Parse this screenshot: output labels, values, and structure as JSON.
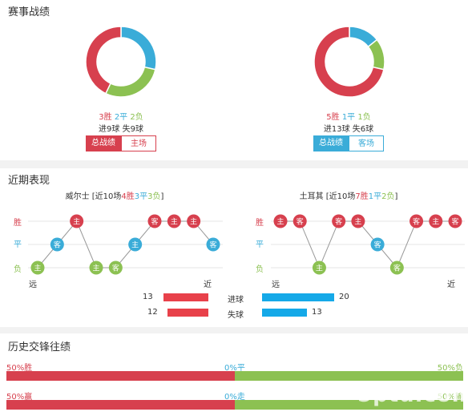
{
  "record": {
    "title": "赛事战绩",
    "left": {
      "donut": [
        {
          "name": "win",
          "value": 3,
          "color": "#d7404e"
        },
        {
          "name": "draw",
          "value": 2,
          "color": "#3aacd8"
        },
        {
          "name": "loss",
          "value": 2,
          "color": "#8cc152"
        }
      ],
      "win": "3胜",
      "draw": "2平",
      "loss": "2负",
      "goals": "进9球 失9球",
      "tab_total": "总战绩",
      "tab_venue": "主场"
    },
    "right": {
      "donut": [
        {
          "name": "win",
          "value": 5,
          "color": "#d7404e"
        },
        {
          "name": "draw",
          "value": 1,
          "color": "#3aacd8"
        },
        {
          "name": "loss",
          "value": 1,
          "color": "#8cc152"
        }
      ],
      "win": "5胜",
      "draw": "1平",
      "loss": "1负",
      "goals": "进13球 失6球",
      "tab_total": "总战绩",
      "tab_venue": "客场"
    }
  },
  "recent": {
    "title": "近期表现",
    "left": {
      "team": "威尔士",
      "summary_pre": " [近10场",
      "w": "4胜",
      "d": "3平",
      "l": "3负",
      "summary_post": "]",
      "results": [
        {
          "r": "L",
          "v": "主"
        },
        {
          "r": "D",
          "v": "客"
        },
        {
          "r": "W",
          "v": "主"
        },
        {
          "r": "L",
          "v": "主"
        },
        {
          "r": "L",
          "v": "客"
        },
        {
          "r": "D",
          "v": "主"
        },
        {
          "r": "W",
          "v": "客"
        },
        {
          "r": "W",
          "v": "主"
        },
        {
          "r": "W",
          "v": "主"
        },
        {
          "r": "D",
          "v": "客"
        }
      ]
    },
    "right": {
      "team": "土耳其",
      "summary_pre": " [近10场",
      "w": "7胜",
      "d": "1平",
      "l": "2负",
      "summary_post": "]",
      "results": [
        {
          "r": "W",
          "v": "主"
        },
        {
          "r": "W",
          "v": "客"
        },
        {
          "r": "L",
          "v": "主"
        },
        {
          "r": "W",
          "v": "客"
        },
        {
          "r": "W",
          "v": "主"
        },
        {
          "r": "D",
          "v": "客"
        },
        {
          "r": "L",
          "v": "客"
        },
        {
          "r": "W",
          "v": "客"
        },
        {
          "r": "W",
          "v": "主"
        },
        {
          "r": "W",
          "v": "客"
        }
      ]
    },
    "y_labels": {
      "win": "胜",
      "draw": "平",
      "loss": "负"
    },
    "far": "远",
    "near": "近",
    "goals": {
      "label": "进球",
      "left": 13,
      "right": 20,
      "max": 20
    },
    "conceded": {
      "label": "失球",
      "left": 12,
      "right": 13,
      "max": 20
    }
  },
  "history": {
    "title": "历史交锋往绩",
    "rows": [
      {
        "left_label": "50%胜",
        "mid_label": "0%平",
        "right_label": "50%负",
        "left_pct": 50,
        "mid_pct": 0,
        "right_pct": 50
      },
      {
        "left_label": "50%赢",
        "mid_label": "0%走",
        "right_label": "50%输",
        "left_pct": 50,
        "mid_pct": 0,
        "right_pct": 50
      }
    ]
  },
  "watermark": "5ptu.com",
  "colors": {
    "win": "#d7404e",
    "draw": "#3aacd8",
    "loss": "#8cc152",
    "bar_red": "#e8414a",
    "bar_blue": "#15a9e8"
  }
}
